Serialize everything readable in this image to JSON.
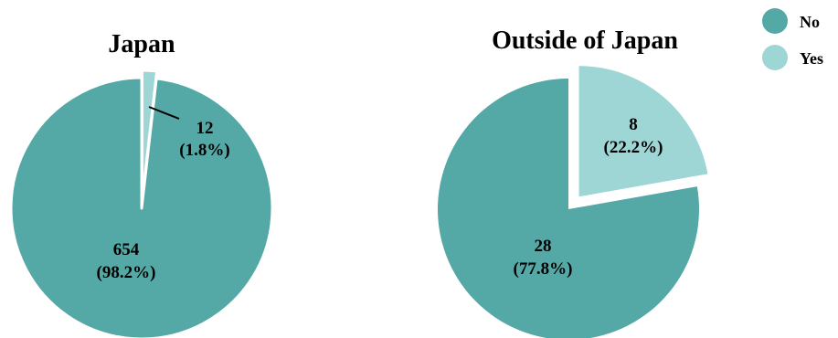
{
  "chart_data": [
    {
      "type": "pie",
      "title": "Japan",
      "categories": [
        "No",
        "Yes"
      ],
      "values": [
        654,
        12
      ],
      "percent_labels": [
        "(98.2%)",
        "(1.8%)"
      ],
      "count_labels": [
        "654",
        "12"
      ],
      "exploded": "Yes"
    },
    {
      "type": "pie",
      "title": "Outside of Japan",
      "categories": [
        "No",
        "Yes"
      ],
      "values": [
        28,
        8
      ],
      "percent_labels": [
        "(77.8%)",
        "(22.2%)"
      ],
      "count_labels": [
        "28",
        "8"
      ],
      "exploded": "Yes"
    }
  ],
  "legend": {
    "placement": "top-right",
    "items": [
      {
        "label": "No",
        "color": "#54a8a6"
      },
      {
        "label": "Yes",
        "color": "#9dd6d5"
      }
    ]
  },
  "colors": {
    "no": "#54a8a6",
    "yes": "#9dd6d5"
  }
}
